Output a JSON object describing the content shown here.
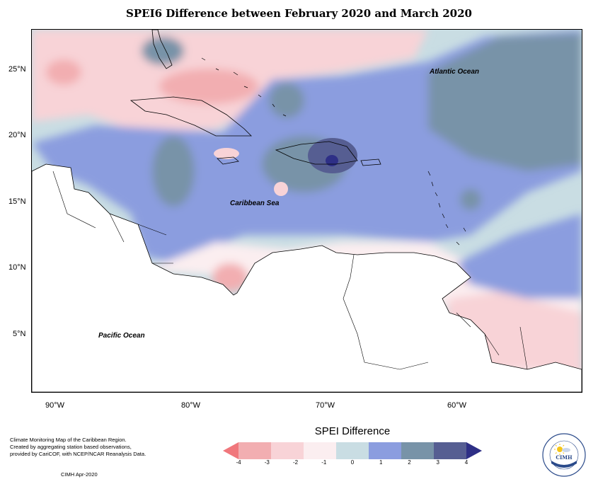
{
  "title": "SPEI6 Difference between February 2020 and March 2020",
  "map": {
    "lat_labels": [
      "25°N",
      "20°N",
      "15°N",
      "10°N",
      "5°N"
    ],
    "lon_labels": [
      "90°W",
      "80°W",
      "70°W",
      "60°W"
    ],
    "region_labels": {
      "atlantic": "Atlantic Ocean",
      "caribbean": "Caribbean Sea",
      "pacific": "Pacific Ocean"
    }
  },
  "legend": {
    "title": "SPEI Difference",
    "ticks": [
      "-4",
      "-3",
      "-2",
      "-1",
      "0",
      "1",
      "2",
      "3",
      "4"
    ],
    "colors": [
      "#f0777c",
      "#f2aeb1",
      "#f8d3d7",
      "#fbeef0",
      "#c9dde3",
      "#8b9ddf",
      "#7893a8",
      "#565e92",
      "#2e2f86"
    ]
  },
  "credits": {
    "line1": "Climate Monitoring Map of the Caribbean Region.",
    "line2": "Created by aggregating station based observations,",
    "line3": "provided by CariCOF, with NCEP/NCAR Reanalysis Data.",
    "date": "CIMH Apr-2020"
  },
  "logo": {
    "text": "CIMH",
    "icon": "sun-icon"
  }
}
